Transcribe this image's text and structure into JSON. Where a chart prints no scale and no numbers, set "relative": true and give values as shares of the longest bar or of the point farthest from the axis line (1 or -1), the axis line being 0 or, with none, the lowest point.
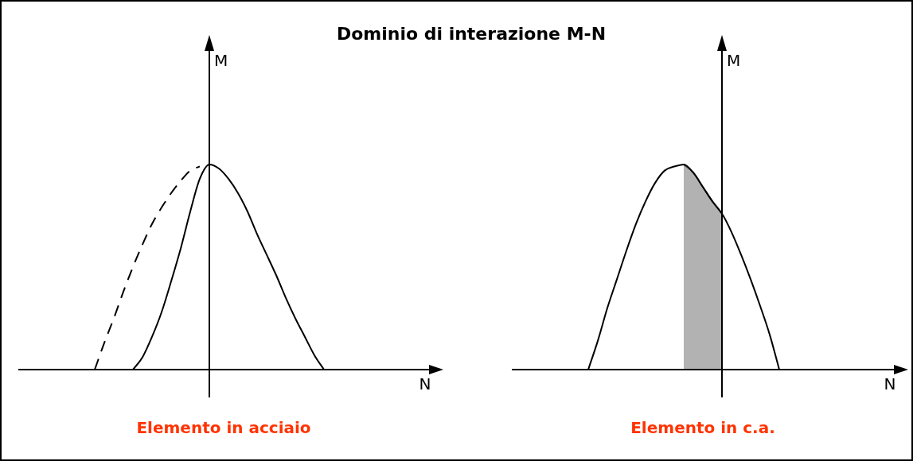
{
  "chart_data": [
    {
      "type": "line",
      "title": "Dominio di interazione M-N",
      "xlabel": "N",
      "ylabel": "M",
      "relative": true,
      "marker": "none",
      "categories": [
        null,
        null,
        null,
        null,
        null,
        null,
        null,
        null,
        null,
        null,
        null,
        null,
        null,
        null,
        null,
        null,
        null,
        null,
        null,
        null,
        null,
        null,
        null,
        null,
        null,
        null,
        null,
        null,
        null,
        null,
        null,
        null,
        null,
        null,
        null,
        null,
        null,
        null,
        null,
        null,
        null,
        null,
        null,
        null
      ],
      "series": [
        {
          "color": "#000000",
          "line_style": "solid",
          "values": [
            null,
            null,
            null,
            null,
            null,
            null,
            null,
            null,
            null,
            null,
            null,
            null,
            0,
            0.06,
            0.16,
            0.28,
            0.43,
            0.59,
            0.77,
            0.93,
            1,
            0.98,
            0.93,
            0.86,
            0.77,
            0.66,
            0.56,
            0.46,
            0.35,
            0.25,
            0.16,
            0.07,
            0,
            null,
            null,
            null,
            null,
            null,
            null,
            null,
            null,
            null,
            null,
            null
          ]
        },
        {
          "color": "#000000",
          "line_style": "dashed",
          "values": [
            null,
            null,
            null,
            null,
            null,
            null,
            null,
            null,
            0,
            0.13,
            0.25,
            0.38,
            0.5,
            0.61,
            0.71,
            0.79,
            0.86,
            0.92,
            0.97,
            0.99,
            null,
            null,
            null,
            null,
            null,
            null,
            null,
            null,
            null,
            null,
            null,
            null,
            null,
            null,
            null,
            null,
            null,
            null,
            null,
            null,
            null,
            null,
            null,
            null
          ]
        }
      ],
      "annotations": [
        "Elemento in acciaio"
      ]
    },
    {
      "type": "line",
      "xlabel": "N",
      "ylabel": "M",
      "relative": true,
      "marker": "none",
      "categories": [
        null,
        null,
        null,
        null,
        null,
        null,
        null,
        null,
        null,
        null,
        null,
        null,
        null,
        null,
        null,
        null,
        null,
        null,
        null,
        null,
        null,
        null,
        null,
        null,
        null,
        null,
        null,
        null,
        null,
        null,
        null,
        null,
        null,
        null,
        null,
        null,
        null,
        null,
        null,
        null,
        null
      ],
      "series": [
        {
          "color": "#000000",
          "line_style": "solid",
          "values": [
            null,
            null,
            null,
            null,
            null,
            null,
            null,
            null,
            0,
            0.14,
            0.3,
            0.44,
            0.58,
            0.71,
            0.82,
            0.91,
            0.97,
            0.99,
            1,
            0.96,
            0.89,
            0.82,
            0.76,
            0.67,
            0.56,
            0.44,
            0.31,
            0.17,
            0,
            null,
            null,
            null,
            null,
            null,
            null,
            null,
            null,
            null,
            null,
            null,
            null
          ]
        },
        {
          "type": "area",
          "color": "#555555",
          "values": [
            null,
            null,
            null,
            null,
            null,
            null,
            null,
            null,
            null,
            null,
            null,
            null,
            null,
            null,
            null,
            null,
            null,
            null,
            1,
            0.96,
            0.89,
            0.82,
            0.76,
            null,
            null,
            null,
            null,
            null,
            null,
            null,
            null,
            null,
            null,
            null,
            null,
            null,
            null,
            null,
            null,
            null,
            null
          ]
        }
      ],
      "annotations": [
        "Elemento in c.a."
      ]
    }
  ]
}
